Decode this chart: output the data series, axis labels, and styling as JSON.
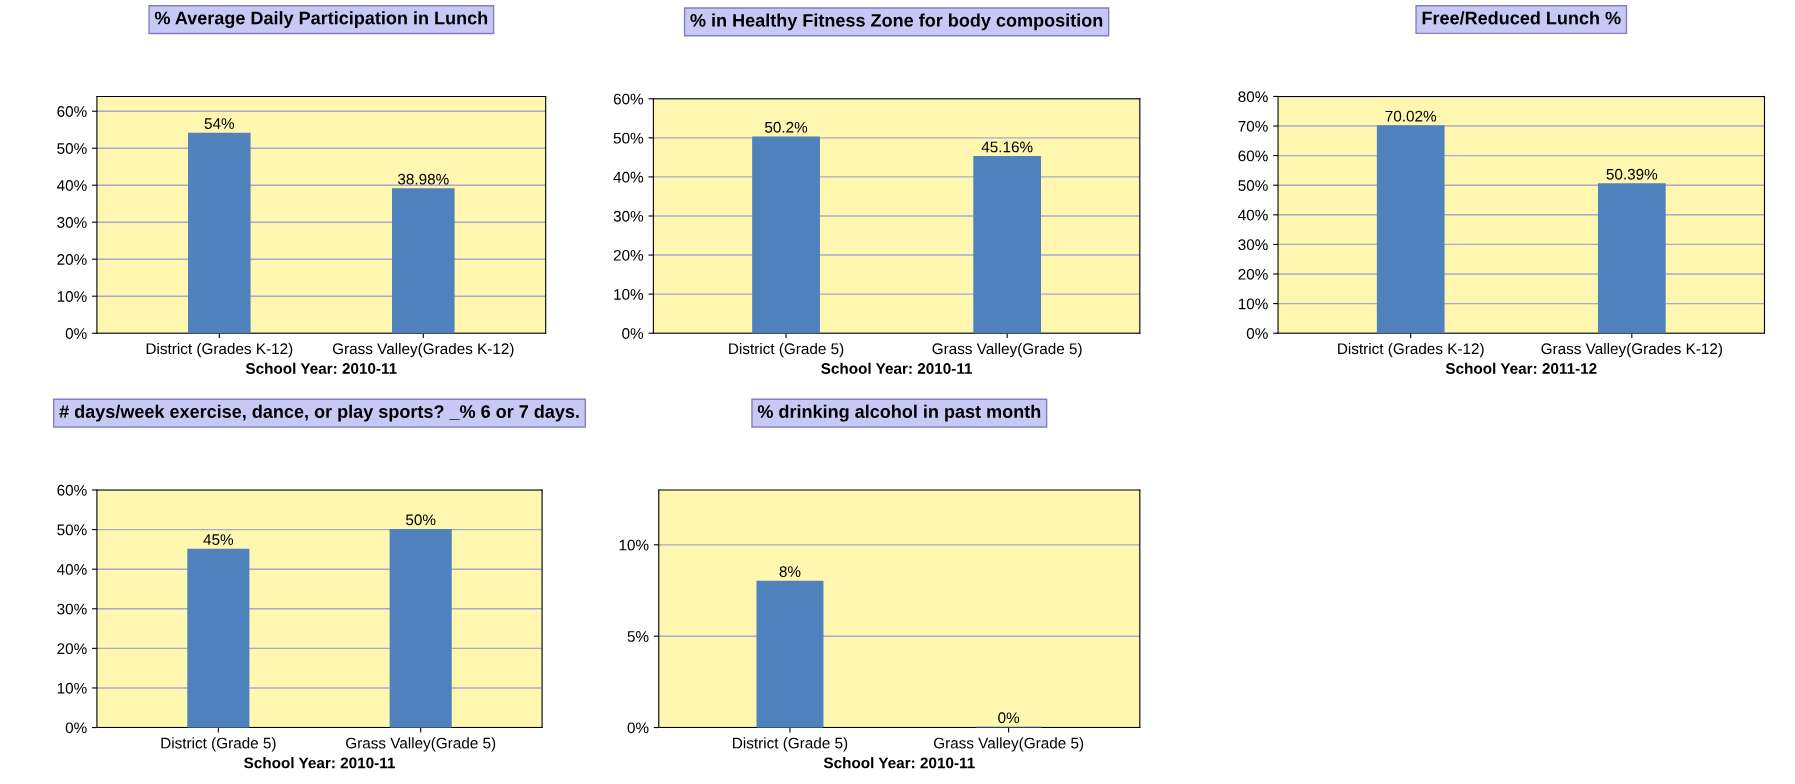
{
  "chart_data": [
    {
      "type": "bar",
      "title": "% Average Daily Participation in Lunch",
      "xlabel": "School Year: 2010-11",
      "categories": [
        "District (Grades K-12)",
        "Grass Valley(Grades K-12)"
      ],
      "values": [
        54,
        38.98
      ],
      "value_labels": [
        "54%",
        "38.98%"
      ],
      "color": "#4f81bd",
      "ylim": [
        0,
        64
      ],
      "yticks": [
        {
          "value": 0,
          "label": "0%"
        },
        {
          "value": 10,
          "label": "10%"
        },
        {
          "value": 20,
          "label": "20%"
        },
        {
          "value": 30,
          "label": "30%"
        },
        {
          "value": 40,
          "label": "40%"
        },
        {
          "value": 50,
          "label": "50%"
        },
        {
          "value": 60,
          "label": "60%"
        }
      ],
      "grid": "y",
      "legend": false
    },
    {
      "type": "bar",
      "title": "% in Healthy Fitness Zone for body composition",
      "xlabel": "School Year: 2010-11",
      "categories": [
        "District (Grade 5)",
        "Grass Valley(Grade 5)"
      ],
      "values": [
        50.2,
        45.16
      ],
      "value_labels": [
        "50.2%",
        "45.16%"
      ],
      "color": "#4f81bd",
      "ylim": [
        0,
        60
      ],
      "yticks": [
        {
          "value": 0,
          "label": "0%"
        },
        {
          "value": 10,
          "label": "10%"
        },
        {
          "value": 20,
          "label": "20%"
        },
        {
          "value": 30,
          "label": "30%"
        },
        {
          "value": 40,
          "label": "40%"
        },
        {
          "value": 50,
          "label": "50%"
        },
        {
          "value": 60,
          "label": "60%"
        }
      ],
      "grid": "y",
      "legend": false
    },
    {
      "type": "bar",
      "title": "Free/Reduced Lunch %",
      "xlabel": "School Year: 2011-12",
      "categories": [
        "District (Grades K-12)",
        "Grass Valley(Grades K-12)"
      ],
      "values": [
        70.02,
        50.39
      ],
      "value_labels": [
        "70.02%",
        "50.39%"
      ],
      "color": "#4f81bd",
      "ylim": [
        0,
        80
      ],
      "yticks": [
        {
          "value": 0,
          "label": "0%"
        },
        {
          "value": 10,
          "label": "10%"
        },
        {
          "value": 20,
          "label": "20%"
        },
        {
          "value": 30,
          "label": "30%"
        },
        {
          "value": 40,
          "label": "40%"
        },
        {
          "value": 50,
          "label": "50%"
        },
        {
          "value": 60,
          "label": "60%"
        },
        {
          "value": 70,
          "label": "70%"
        },
        {
          "value": 80,
          "label": "80%"
        }
      ],
      "grid": "y",
      "legend": false
    },
    {
      "type": "bar",
      "title": "# days/week exercise, dance, or play sports? _% 6 or 7 days.",
      "xlabel": "School Year: 2010-11",
      "categories": [
        "District (Grade 5)",
        "Grass Valley(Grade 5)"
      ],
      "values": [
        45,
        50
      ],
      "value_labels": [
        "45%",
        "50%"
      ],
      "color": "#4f81bd",
      "ylim": [
        0,
        60
      ],
      "yticks": [
        {
          "value": 0,
          "label": "0%"
        },
        {
          "value": 10,
          "label": "10%"
        },
        {
          "value": 20,
          "label": "20%"
        },
        {
          "value": 30,
          "label": "30%"
        },
        {
          "value": 40,
          "label": "40%"
        },
        {
          "value": 50,
          "label": "50%"
        },
        {
          "value": 60,
          "label": "60%"
        }
      ],
      "grid": "y",
      "legend": false
    },
    {
      "type": "bar",
      "title": "% drinking alcohol in past month",
      "xlabel": "School Year: 2010-11",
      "categories": [
        "District (Grade 5)",
        "Grass Valley(Grade 5)"
      ],
      "values": [
        8,
        0
      ],
      "value_labels": [
        "8%",
        "0%"
      ],
      "color": "#4f81bd",
      "ylim": [
        0,
        13
      ],
      "yticks": [
        {
          "value": 0,
          "label": "0%"
        },
        {
          "value": 5,
          "label": "5%"
        },
        {
          "value": 10,
          "label": "10%"
        }
      ],
      "grid": "y",
      "legend": false
    }
  ]
}
